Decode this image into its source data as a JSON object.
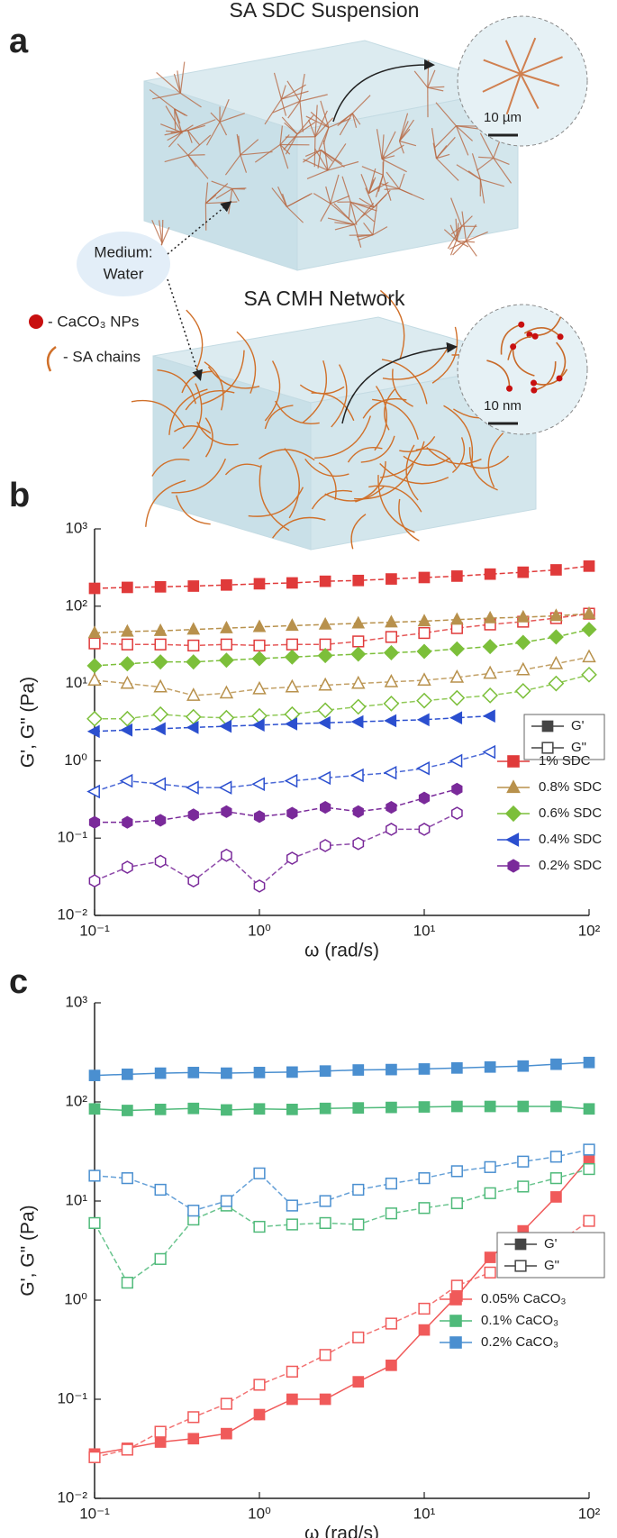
{
  "panel_labels": [
    "a",
    "b",
    "c"
  ],
  "diagram": {
    "suspension_title": "SA SDC Suspension",
    "suspension_scale": "10 µm",
    "medium": [
      "Medium:",
      "Water"
    ],
    "network_title": "SA CMH Network",
    "legend": [
      "- CaCO₃ NPs",
      "- SA chains"
    ],
    "network_scale": "10 nm"
  },
  "chart_data": [
    {
      "type": "line",
      "log_x": true,
      "log_y": true,
      "xlabel": "ω (rad/s)",
      "ylabel": "G', G\" (Pa)",
      "xlim": [
        0.1,
        100
      ],
      "ylim": [
        0.01,
        1000
      ],
      "xticks": [
        {
          "value": 0.1,
          "label": "10⁻¹"
        },
        {
          "value": 1,
          "label": "10⁰"
        },
        {
          "value": 10,
          "label": "10¹"
        },
        {
          "value": 100,
          "label": "10²"
        }
      ],
      "yticks": [
        {
          "value": 0.01,
          "label": "10⁻²"
        },
        {
          "value": 0.1,
          "label": "10⁻¹"
        },
        {
          "value": 1,
          "label": "10⁰"
        },
        {
          "value": 10,
          "label": "10¹"
        },
        {
          "value": 100,
          "label": "10²"
        },
        {
          "value": 1000,
          "label": "10³"
        }
      ],
      "modulus_legend": [
        "G'",
        "G\""
      ],
      "line_style": {
        "storage": "dashed",
        "loss": "dashed"
      },
      "x": [
        0.1,
        0.158,
        0.251,
        0.398,
        0.631,
        1,
        1.58,
        2.51,
        3.98,
        6.31,
        10,
        15.8,
        25.1,
        39.8,
        63.1,
        100
      ],
      "series": [
        {
          "name": "1% SDC",
          "color": "#e03a3a",
          "marker": "square",
          "storage": [
            170,
            175,
            178,
            182,
            188,
            195,
            200,
            210,
            215,
            225,
            235,
            245,
            260,
            275,
            295,
            330
          ],
          "loss": [
            33,
            32,
            32,
            31,
            32,
            31,
            32,
            32,
            35,
            40,
            45,
            52,
            58,
            63,
            70,
            80
          ]
        },
        {
          "name": "0.8% SDC",
          "color": "#b8914c",
          "marker": "triangle",
          "storage": [
            45,
            47,
            48,
            50,
            52,
            54,
            56,
            58,
            60,
            62,
            64,
            67,
            70,
            72,
            75,
            80
          ],
          "loss": [
            11,
            10,
            9,
            7,
            7.5,
            8.5,
            9,
            9.5,
            10,
            10.5,
            11,
            12,
            13.5,
            15,
            18,
            22
          ]
        },
        {
          "name": "0.6% SDC",
          "color": "#7cbf3a",
          "marker": "diamond",
          "storage": [
            17,
            18,
            19,
            19,
            20,
            21,
            22,
            23,
            24,
            25,
            26,
            28,
            30,
            34,
            40,
            50
          ],
          "loss": [
            3.5,
            3.5,
            4,
            3.7,
            3.6,
            3.8,
            4,
            4.5,
            5,
            5.5,
            6,
            6.5,
            7,
            8,
            10,
            13
          ]
        },
        {
          "name": "0.4% SDC",
          "color": "#2b4fcf",
          "marker": "triangle-left",
          "storage": [
            2.4,
            2.5,
            2.6,
            2.7,
            2.8,
            2.9,
            3.0,
            3.1,
            3.2,
            3.3,
            3.4,
            3.6,
            3.8,
            null,
            null,
            null
          ],
          "loss": [
            0.4,
            0.55,
            0.5,
            0.45,
            0.45,
            0.5,
            0.55,
            0.6,
            0.65,
            0.7,
            0.8,
            1.0,
            1.3,
            null,
            null,
            null
          ]
        },
        {
          "name": "0.2% SDC",
          "color": "#7a2a9a",
          "marker": "hexagon",
          "storage": [
            0.16,
            0.16,
            0.17,
            0.2,
            0.22,
            0.19,
            0.21,
            0.25,
            0.22,
            0.25,
            0.33,
            0.43,
            null,
            null,
            null,
            null
          ],
          "loss": [
            0.028,
            0.042,
            0.05,
            0.028,
            0.06,
            0.024,
            0.055,
            0.08,
            0.085,
            0.13,
            0.13,
            0.21,
            null,
            null,
            null,
            null
          ]
        }
      ]
    },
    {
      "type": "line",
      "log_x": true,
      "log_y": true,
      "xlabel": "ω (rad/s)",
      "ylabel": "G', G\" (Pa)",
      "xlim": [
        0.1,
        100
      ],
      "ylim": [
        0.01,
        1000
      ],
      "xticks": [
        {
          "value": 0.1,
          "label": "10⁻¹"
        },
        {
          "value": 1,
          "label": "10⁰"
        },
        {
          "value": 10,
          "label": "10¹"
        },
        {
          "value": 100,
          "label": "10²"
        }
      ],
      "yticks": [
        {
          "value": 0.01,
          "label": "10⁻²"
        },
        {
          "value": 0.1,
          "label": "10⁻¹"
        },
        {
          "value": 1,
          "label": "10⁰"
        },
        {
          "value": 10,
          "label": "10¹"
        },
        {
          "value": 100,
          "label": "10²"
        },
        {
          "value": 1000,
          "label": "10³"
        }
      ],
      "modulus_legend": [
        "G'",
        "G\""
      ],
      "line_style": {
        "storage": "solid",
        "loss": "dashed"
      },
      "x": [
        0.1,
        0.158,
        0.251,
        0.398,
        0.631,
        1,
        1.58,
        2.51,
        3.98,
        6.31,
        10,
        15.8,
        25.1,
        39.8,
        63.1,
        100
      ],
      "series": [
        {
          "name": "0.05% CaCO₃",
          "color": "#f05a5a",
          "marker": "square",
          "storage": [
            0.028,
            0.032,
            0.037,
            0.04,
            0.045,
            0.07,
            0.1,
            0.1,
            0.15,
            0.22,
            0.5,
            1.1,
            2.7,
            5,
            11,
            27
          ],
          "loss": [
            0.026,
            0.031,
            0.047,
            0.066,
            0.09,
            0.14,
            0.19,
            0.28,
            0.42,
            0.58,
            0.82,
            1.4,
            1.9,
            2.4,
            3.7,
            6.3
          ]
        },
        {
          "name": "0.1% CaCO₃",
          "color": "#4fba7a",
          "marker": "square",
          "storage": [
            85,
            82,
            84,
            86,
            83,
            85,
            84,
            86,
            87,
            88,
            89,
            90,
            90,
            90,
            90,
            85
          ],
          "loss": [
            6,
            1.5,
            2.6,
            6.5,
            9,
            5.5,
            5.8,
            6,
            5.8,
            7.5,
            8.5,
            9.5,
            12,
            14,
            17,
            21
          ]
        },
        {
          "name": "0.2% CaCO₃",
          "color": "#4a8fd0",
          "marker": "square",
          "storage": [
            185,
            190,
            195,
            198,
            195,
            198,
            200,
            205,
            210,
            212,
            215,
            220,
            225,
            230,
            240,
            250
          ],
          "loss": [
            18,
            17,
            13,
            8,
            10,
            19,
            9,
            10,
            13,
            15,
            17,
            20,
            22,
            25,
            28,
            33
          ]
        }
      ]
    }
  ]
}
